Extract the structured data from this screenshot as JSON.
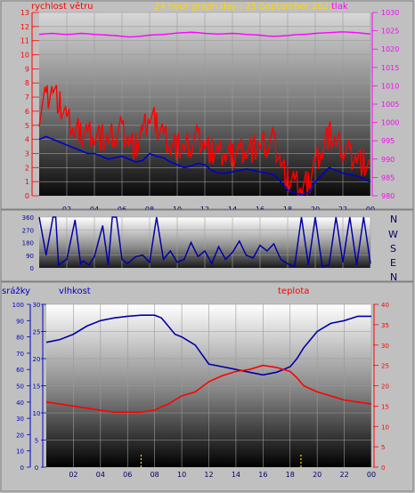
{
  "colors": {
    "wind": "#ff0000",
    "wind_gust": "#ff0000",
    "wind_avg": "#0000cc",
    "pressure": "#ff00ff",
    "direction": "#0000aa",
    "humidity": "#0000aa",
    "temperature": "#ff0000",
    "rain": "#ffd700",
    "title": "#ffd700",
    "axis_left": "#ff0000",
    "axis_right_top": "#ff00ff",
    "axis_mid": "#0000aa",
    "axis_bottom_left": "#0000cc",
    "axis_bottom_right": "#ff0000"
  },
  "header": {
    "wind_label": "rychlost větru",
    "title": "24 hour graph day : 25 September 2023",
    "pressure_label": "tlak"
  },
  "bottom_header": {
    "rain_label": "srážky",
    "humidity_label": "vlhkost",
    "temperature_label": "teplota"
  },
  "compass": [
    "N",
    "W",
    "S",
    "E",
    "N"
  ],
  "chart_data": [
    {
      "type": "line",
      "name": "wind-pressure",
      "x_ticks": [
        "02",
        "04",
        "06",
        "08",
        "10",
        "12",
        "14",
        "16",
        "18",
        "20",
        "22",
        "00"
      ],
      "ylim_left": [
        0,
        13
      ],
      "yticks_left": [
        "0",
        "1",
        "2",
        "3",
        "4",
        "5",
        "6",
        "7",
        "8",
        "9",
        "10",
        "11",
        "12",
        "13"
      ],
      "ylim_right": [
        980,
        1030
      ],
      "yticks_right": [
        "980",
        "985",
        "990",
        "995",
        "1000",
        "1005",
        "1010",
        "1015",
        "1020",
        "1025",
        "1030"
      ],
      "x_hours": [
        0,
        0.5,
        1,
        1.5,
        2,
        2.5,
        3,
        3.5,
        4,
        4.5,
        5,
        5.5,
        6,
        6.5,
        7,
        7.5,
        8,
        8.5,
        9,
        9.5,
        10,
        10.5,
        11,
        11.5,
        12,
        12.5,
        13,
        13.5,
        14,
        14.5,
        15,
        15.5,
        16,
        16.5,
        17,
        17.5,
        18,
        18.5,
        19,
        19.5,
        20,
        20.5,
        21,
        21.5,
        22,
        22.5,
        23,
        23.5,
        24
      ],
      "wind_gust": [
        6.0,
        7.0,
        7.8,
        6.5,
        5.5,
        4.8,
        4.5,
        4.6,
        4.5,
        4.2,
        4.0,
        4.5,
        4.8,
        4.0,
        3.5,
        4.5,
        5.8,
        5.2,
        4.5,
        3.8,
        3.6,
        3.4,
        3.8,
        4.2,
        3.8,
        3.2,
        3.0,
        3.1,
        3.0,
        3.3,
        3.5,
        3.4,
        3.6,
        3.8,
        4.0,
        2.5,
        1.2,
        1.0,
        0.6,
        1.0,
        2.5,
        3.5,
        4.5,
        3.8,
        3.5,
        3.0,
        2.8,
        2.4,
        1.8
      ],
      "wind_avg": [
        4.0,
        4.2,
        4.0,
        3.8,
        3.6,
        3.4,
        3.2,
        3.0,
        3.0,
        2.8,
        2.6,
        2.7,
        2.8,
        2.6,
        2.4,
        2.5,
        3.0,
        2.8,
        2.7,
        2.4,
        2.2,
        2.0,
        2.1,
        2.3,
        2.2,
        1.8,
        1.6,
        1.6,
        1.7,
        1.8,
        1.9,
        1.8,
        1.7,
        1.6,
        1.5,
        1.0,
        0.4,
        0.2,
        0.1,
        0.2,
        1.0,
        1.5,
        2.0,
        1.8,
        1.6,
        1.5,
        1.4,
        1.2,
        1.0
      ],
      "pressure": [
        1024.0,
        1024.2,
        1024.3,
        1024.1,
        1024.0,
        1024.1,
        1024.3,
        1024.2,
        1024.0,
        1023.9,
        1023.8,
        1023.7,
        1023.5,
        1023.3,
        1023.4,
        1023.6,
        1023.8,
        1023.9,
        1024.0,
        1024.2,
        1024.4,
        1024.5,
        1024.6,
        1024.5,
        1024.3,
        1024.2,
        1024.1,
        1024.2,
        1024.3,
        1024.2,
        1024.0,
        1023.9,
        1023.8,
        1023.6,
        1023.5,
        1023.6,
        1023.7,
        1023.9,
        1024.0,
        1024.1,
        1024.3,
        1024.4,
        1024.5,
        1024.6,
        1024.7,
        1024.6,
        1024.5,
        1024.3,
        1024.1
      ],
      "xlabel": "",
      "ylabel_left": "rychlost větru",
      "ylabel_right": "tlak",
      "title": "24 hour graph day : 25 September 2023"
    },
    {
      "type": "line",
      "name": "wind-direction",
      "ylim": [
        0,
        360
      ],
      "yticks": [
        "0",
        "90",
        "180",
        "270",
        "360"
      ],
      "x_hours": [
        0,
        0.5,
        1,
        1.2,
        1.4,
        2,
        2.6,
        3,
        3.2,
        3.6,
        4,
        4.6,
        5,
        5.3,
        5.6,
        6,
        6.4,
        7,
        7.5,
        8,
        8.5,
        9,
        9.5,
        10,
        10.5,
        11,
        11.5,
        12,
        12.5,
        13,
        13.5,
        14,
        14.5,
        15,
        15.5,
        16,
        16.5,
        17,
        17.5,
        18,
        18.5,
        19,
        19.5,
        20,
        20.5,
        21,
        21.5,
        22,
        22.5,
        23,
        23.5,
        24
      ],
      "direction": [
        360,
        90,
        360,
        360,
        20,
        60,
        340,
        30,
        50,
        20,
        80,
        300,
        20,
        360,
        360,
        60,
        30,
        80,
        90,
        40,
        360,
        60,
        120,
        40,
        60,
        180,
        80,
        120,
        30,
        150,
        60,
        110,
        190,
        90,
        70,
        160,
        120,
        170,
        60,
        30,
        10,
        360,
        20,
        360,
        10,
        20,
        360,
        40,
        360,
        20,
        360,
        30
      ]
    },
    {
      "type": "line",
      "name": "humidity-temperature-rain",
      "x_ticks": [
        "02",
        "04",
        "06",
        "08",
        "10",
        "12",
        "14",
        "16",
        "18",
        "20",
        "22",
        "00"
      ],
      "ylim_rain": [
        0,
        100
      ],
      "yticks_rain": [
        "0",
        "10",
        "20",
        "30",
        "40",
        "50",
        "60",
        "70",
        "80",
        "90",
        "100"
      ],
      "ylim_humidity": [
        0,
        30
      ],
      "yticks_humidity": [
        "0",
        "5",
        "10",
        "15",
        "20",
        "25",
        "30"
      ],
      "ylim_temperature": [
        0,
        40
      ],
      "yticks_temperature": [
        "0",
        "5",
        "10",
        "15",
        "20",
        "25",
        "30",
        "35",
        "40"
      ],
      "x_hours": [
        0,
        1,
        2,
        3,
        4,
        5,
        6,
        7,
        8,
        8.5,
        9,
        9.5,
        10,
        11,
        12,
        13,
        14,
        15,
        16,
        17,
        17.5,
        18,
        18.5,
        19,
        20,
        21,
        22,
        23,
        24
      ],
      "humidity": [
        23,
        23.5,
        24.5,
        26,
        27,
        27.5,
        27.8,
        28,
        28,
        27.5,
        26,
        24.5,
        24,
        22.5,
        19,
        18.5,
        18,
        17.5,
        17,
        17.5,
        18,
        18.5,
        20,
        22,
        25,
        26.5,
        27,
        27.8,
        27.8
      ],
      "temperature": [
        16,
        15.5,
        15,
        14.5,
        14,
        13.5,
        13.5,
        13.5,
        14,
        14.8,
        15.5,
        16.5,
        17.5,
        18.5,
        21,
        22.5,
        23.5,
        24,
        25,
        24.5,
        24,
        23.5,
        22,
        20,
        18.5,
        17.5,
        16.5,
        16,
        15.5
      ],
      "rain_hours": [
        7,
        18.8
      ],
      "rain": [
        1,
        1
      ],
      "ylabel_rain": "srážky",
      "ylabel_humidity": "vlhkost",
      "ylabel_temperature": "teplota"
    }
  ]
}
